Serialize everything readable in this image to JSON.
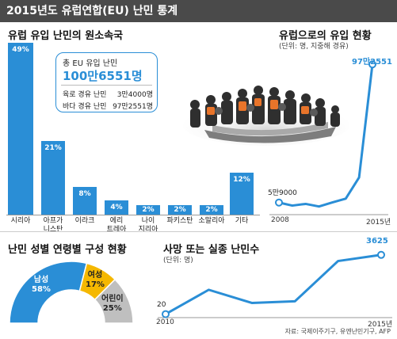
{
  "header": {
    "title": "2015년도 유럽연합(EU) 난민 통계"
  },
  "origin": {
    "title": "유럽 유입 난민의 원소속국",
    "total_box": {
      "title": "총 EU 유입 난민",
      "value": "100만6551명",
      "land_label": "육로 경유 난민",
      "land_value": "3만4000명",
      "sea_label": "바다 경유 난민",
      "sea_value": "97만2551명"
    }
  },
  "inflow": {
    "title": "유럽으로의 유입 현황",
    "unit": "(단위: 명, 지중해 경유)",
    "start_label": "5만9000",
    "end_label": "97만2551",
    "x_start": "2008",
    "x_end": "2015년"
  },
  "gender": {
    "title": "난민 성별 연령별 구성 현황",
    "male_label": "남성",
    "male_value": "58%",
    "female_label": "여성",
    "female_value": "17%",
    "child_label": "어린이",
    "child_value": "25%"
  },
  "deaths": {
    "title": "사망 또는 실종 난민수",
    "unit": "(단위: 명)",
    "start_label": "20",
    "end_label": "3625",
    "x_start": "2010",
    "x_end": "2015년"
  },
  "source": "자료: 국제이주기구, 유엔난민기구, AFP",
  "colors": {
    "accent": "#2a8ed6",
    "female": "#f5b800",
    "child": "#bfbfbf",
    "title_bar": "#4a4a4a"
  },
  "chart_data": [
    {
      "type": "bar",
      "title": "유럽 유입 난민의 원소속국",
      "categories": [
        "시리아",
        "아프가니스탄",
        "이라크",
        "에리트레아",
        "나이지리아",
        "파키스탄",
        "소말리아",
        "기타"
      ],
      "category_display": [
        [
          "시리아"
        ],
        [
          "아프가",
          "니스탄"
        ],
        [
          "이라크"
        ],
        [
          "에리",
          "트레아"
        ],
        [
          "나이",
          "지리아"
        ],
        [
          "파키스탄"
        ],
        [
          "소말리아"
        ],
        [
          "기타"
        ]
      ],
      "values": [
        49,
        21,
        8,
        4,
        2,
        2,
        2,
        12
      ],
      "value_labels": [
        "49%",
        "21%",
        "8%",
        "4%",
        "2%",
        "2%",
        "2%",
        "12%"
      ],
      "ylim": [
        0,
        49
      ]
    },
    {
      "type": "line",
      "title": "유럽으로의 유입 현황",
      "x": [
        "2008",
        "2009",
        "2010",
        "2011",
        "2012",
        "2013",
        "2014",
        "2015"
      ],
      "values": [
        59000,
        39000,
        50000,
        33000,
        60000,
        85000,
        225000,
        972551
      ],
      "ylim": [
        0,
        1000000
      ]
    },
    {
      "type": "pie",
      "title": "난민 성별 연령별 구성 현황",
      "categories": [
        "남성",
        "여성",
        "어린이"
      ],
      "values": [
        58,
        17,
        25
      ]
    },
    {
      "type": "line",
      "title": "사망 또는 실종 난민수",
      "x": [
        "2010",
        "2011",
        "2012",
        "2013",
        "2014",
        "2015"
      ],
      "values": [
        20,
        1500,
        700,
        800,
        3250,
        3625
      ],
      "ylim": [
        0,
        4000
      ]
    }
  ]
}
